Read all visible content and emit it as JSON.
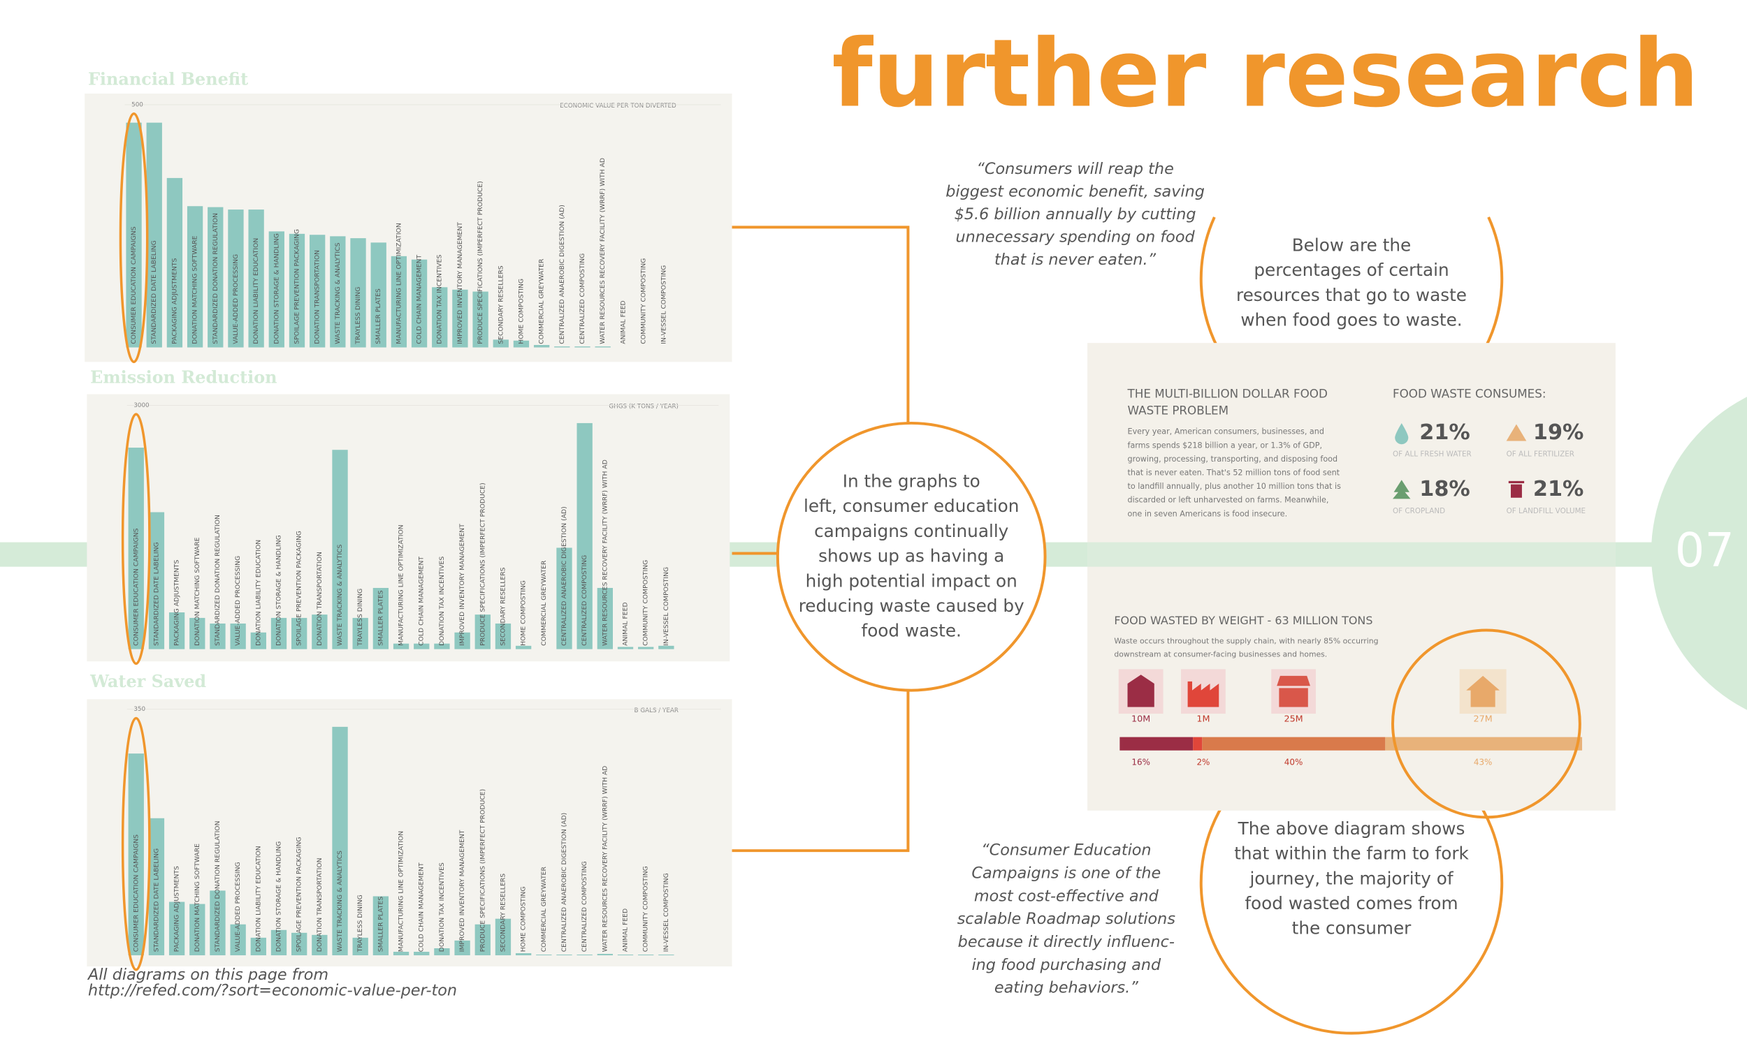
{
  "title": "further research",
  "page_number": "07",
  "chart_data": [
    {
      "type": "bar",
      "title": "Financial Benefit",
      "axis_label": "ECONOMIC VALUE PER TON DIVERTED",
      "color": "#8ec8c0",
      "ylim": [
        0,
        500
      ],
      "yticks": [
        500
      ],
      "categories": [
        "CONSUMER EDUCATION CAMPAIGNS",
        "STANDARDIZED DATE LABELING",
        "PACKAGING ADJUSTMENTS",
        "DONATION MATCHING SOFTWARE",
        "STANDARDIZED DONATION REGULATION",
        "VALUE-ADDED PROCESSING",
        "DONATION LIABILITY EDUCATION",
        "DONATION STORAGE & HANDLING",
        "SPOILAGE PREVENTION PACKAGING",
        "DONATION TRANSPORTATION",
        "WASTE TRACKING & ANALYTICS",
        "TRAYLESS DINING",
        "SMALLER PLATES",
        "MANUFACTURING LINE OPTIMIZATION",
        "COLD CHAIN MANAGEMENT",
        "DONATION TAX INCENTIVES",
        "IMPROVED INVENTORY MANAGEMENT",
        "PRODUCE SPECIFICATIONS (IMPERFECT PRODUCE)",
        "SECONDARY RESELLERS",
        "HOME COMPOSTING",
        "COMMERCIAL GREYWATER",
        "CENTRALIZED ANAEROBIC DIGESTION (AD)",
        "CENTRALIZED COMPOSTING",
        "WATER RESOURCES RECOVERY FACILITY (WRRF) WITH AD",
        "ANIMAL FEED",
        "COMMUNITY COMPOSTING",
        "IN-VESSEL COMPOSTING"
      ],
      "values": [
        463,
        463,
        349,
        291,
        289,
        284,
        284,
        239,
        234,
        232,
        229,
        225,
        216,
        188,
        181,
        124,
        119,
        115,
        16,
        14,
        5,
        2,
        2,
        2,
        0,
        0,
        0
      ]
    },
    {
      "type": "bar",
      "title": "Emission Reduction",
      "axis_label": "GHGS (K TONS / YEAR)",
      "color": "#8ec8c0",
      "ylim": [
        0,
        3000
      ],
      "yticks": [
        3000
      ],
      "categories": [
        "CONSUMER EDUCATION CAMPAIGNS",
        "STANDARDIZED DATE LABELING",
        "PACKAGING ADJUSTMENTS",
        "DONATION MATCHING SOFTWARE",
        "STANDARDIZED DONATION REGULATION",
        "VALUE-ADDED PROCESSING",
        "DONATION LIABILITY EDUCATION",
        "DONATION STORAGE & HANDLING",
        "SPOILAGE PREVENTION PACKAGING",
        "DONATION TRANSPORTATION",
        "WASTE TRACKING & ANALYTICS",
        "TRAYLESS DINING",
        "SMALLER PLATES",
        "MANUFACTURING LINE OPTIMIZATION",
        "COLD CHAIN MANAGEMENT",
        "DONATION TAX INCENTIVES",
        "IMPROVED INVENTORY MANAGEMENT",
        "PRODUCE SPECIFICATIONS (IMPERFECT PRODUCE)",
        "SECONDARY RESELLERS",
        "HOME COMPOSTING",
        "COMMERCIAL GREYWATER",
        "CENTRALIZED ANAEROBIC DIGESTION (AD)",
        "CENTRALIZED COMPOSTING",
        "WATER RESOURCES RECOVERY FACILITY (WRRF) WITH AD",
        "ANIMAL FEED",
        "COMMUNITY COMPOSTING",
        "IN-VESSEL COMPOSTING"
      ],
      "values": [
        2479,
        1685,
        452,
        384,
        315,
        315,
        205,
        384,
        384,
        425,
        2452,
        384,
        753,
        68,
        68,
        68,
        205,
        425,
        315,
        41,
        0,
        1247,
        2781,
        753,
        27,
        27,
        41
      ]
    },
    {
      "type": "bar",
      "title": "Water Saved",
      "axis_label": "B GALS / YEAR",
      "color": "#8ec8c0",
      "ylim": [
        0,
        350
      ],
      "yticks": [
        350
      ],
      "categories": [
        "CONSUMER EDUCATION CAMPAIGNS",
        "STANDARDIZED DATE LABELING",
        "PACKAGING ADJUSTMENTS",
        "DONATION MATCHING SOFTWARE",
        "STANDARDIZED DONATION REGULATION",
        "VALUE-ADDED PROCESSING",
        "DONATION LIABILITY EDUCATION",
        "DONATION STORAGE & HANDLING",
        "SPOILAGE PREVENTION PACKAGING",
        "DONATION TRANSPORTATION",
        "WASTE TRACKING & ANALYTICS",
        "TRAYLESS DINING",
        "SMALLER PLATES",
        "MANUFACTURING LINE OPTIMIZATION",
        "COLD CHAIN MANAGEMENT",
        "DONATION TAX INCENTIVES",
        "IMPROVED INVENTORY MANAGEMENT",
        "PRODUCE SPECIFICATIONS (IMPERFECT PRODUCE)",
        "SECONDARY RESELLERS",
        "HOME COMPOSTING",
        "COMMERCIAL GREYWATER",
        "CENTRALIZED ANAEROBIC DIGESTION (AD)",
        "CENTRALIZED COMPOSTING",
        "WATER RESOURCES RECOVERY FACILITY (WRRF) WITH AD",
        "ANIMAL FEED",
        "COMMUNITY COMPOSTING",
        "IN-VESSEL COMPOSTING"
      ],
      "values": [
        287,
        195,
        76,
        73,
        92,
        44,
        25,
        36,
        32,
        29,
        325,
        25,
        84,
        5,
        5,
        10,
        21,
        44,
        52,
        3,
        1,
        1,
        1,
        2,
        1,
        1,
        1
      ]
    }
  ],
  "quote_top": [
    "“Consumers will reap the",
    "biggest economic benefit, saving",
    "$5.6 billion annually by cutting",
    "unnecessary spending on food",
    "that is never eaten.”"
  ],
  "circle_center": [
    "In the graphs to",
    "left, consumer education",
    "campaigns continually",
    "shows up as having a",
    "high potential impact on",
    "reducing waste caused by",
    "food waste."
  ],
  "circle_top": [
    "Below are the",
    "percentages of certain",
    "resources that go to waste",
    "when food goes to waste."
  ],
  "circle_bottom": [
    "The above diagram shows",
    "that within the farm to fork",
    "journey, the majority of",
    "food wasted comes from",
    "the consumer"
  ],
  "quote_bottom": [
    "“Consumer Education",
    "Campaigns is one of the",
    "most cost-effective and",
    "scalable Roadmap solutions",
    "because it directly influenc-",
    "ing food purchasing and",
    "eating behaviors.”"
  ],
  "source": [
    "All diagrams on this page from",
    "http://refed.com/?sort=economic-value-per-ton"
  ],
  "infographic": {
    "heading": [
      "THE MULTI-BILLION DOLLAR FOOD",
      "WASTE PROBLEM"
    ],
    "paragraph": [
      "Every year, American consumers, businesses, and",
      "farms spends $218 billion a year, or 1.3% of GDP,",
      "growing, processing, transporting, and disposing food",
      "that is never eaten. That's 52 million tons of food sent",
      "to landfill annually, plus another 10 million tons that is",
      "discarded or left unharvested on farms. Meanwhile,",
      "one in seven Americans is food insecure."
    ],
    "consumes_heading": "FOOD WASTE CONSUMES:",
    "stats": [
      {
        "value": "21%",
        "label": "OF ALL FRESH WATER"
      },
      {
        "value": "19%",
        "label": "OF ALL FERTILIZER"
      },
      {
        "value": "18%",
        "label": "OF CROPLAND"
      },
      {
        "value": "21%",
        "label": "OF LANDFILL VOLUME"
      }
    ],
    "weight_heading": "FOOD WASTED BY WEIGHT - 63 MILLION TONS",
    "weight_text": [
      "Waste occurs throughout the supply chain, with nearly 85% occurring",
      "downstream at consumer-facing businesses and homes."
    ],
    "weight": {
      "amounts": [
        "10M",
        "1M",
        "25M",
        "27M"
      ],
      "values": [
        16,
        2,
        40,
        43
      ],
      "value_labels": [
        "16%",
        "2%",
        "40%",
        "43%"
      ]
    }
  }
}
